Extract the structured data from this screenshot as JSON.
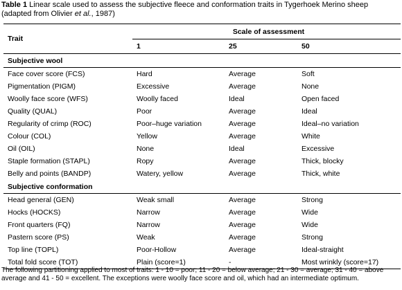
{
  "caption": {
    "label": "Table 1",
    "text": "Linear scale used to assess the subjective fleece and conformation traits in Tygerhoek Merino sheep (adapted from Olivier",
    "italic": "et al.",
    "end": ", 1987)"
  },
  "table": {
    "trait_header": "Trait",
    "scale_header": "Scale of assessment",
    "scale_columns": [
      "1",
      "25",
      "50"
    ],
    "sections": [
      {
        "title": "Subjective wool",
        "rows": [
          [
            "Face cover score (FCS)",
            "Hard",
            "Average",
            "Soft"
          ],
          [
            "Pigmentation (PIGM)",
            "Excessive",
            "Average",
            "None"
          ],
          [
            "Woolly face score (WFS)",
            "Woolly faced",
            "Ideal",
            "Open faced"
          ],
          [
            "Quality (QUAL)",
            "Poor",
            "Average",
            "Ideal"
          ],
          [
            "Regularity of crimp (ROC)",
            "Poor–huge variation",
            "Average",
            "Ideal–no variation"
          ],
          [
            "Colour (COL)",
            "Yellow",
            "Average",
            "White"
          ],
          [
            "Oil (OIL)",
            "None",
            "Ideal",
            "Excessive"
          ],
          [
            "Staple formation (STAPL)",
            "Ropy",
            "Average",
            "Thick, blocky"
          ],
          [
            "Belly and points (BANDP)",
            "Watery, yellow",
            "Average",
            "Thick, white"
          ]
        ]
      },
      {
        "title": "Subjective conformation",
        "rows": [
          [
            "Head general (GEN)",
            "Weak small",
            "Average",
            "Strong"
          ],
          [
            "Hocks (HOCKS)",
            "Narrow",
            "Average",
            "Wide"
          ],
          [
            "Front quarters (FQ)",
            "Narrow",
            "Average",
            "Wide"
          ],
          [
            "Pastern score (PS)",
            "Weak",
            "Average",
            "Strong"
          ],
          [
            "Top line (TOPL)",
            "Poor-Hollow",
            "Average",
            "Ideal-straight"
          ],
          [
            "Total fold score (TOT)",
            "Plain (score=1)",
            "-",
            "Most wrinkly (score=17)"
          ]
        ]
      }
    ]
  },
  "footnote": "The following partitioning applied to most of traits: 1 - 10 = poor; 11 - 20 = below average; 21 - 30 = average; 31 - 40 = above average and 41 - 50 = excellent. The exceptions were woolly face score and oil, which had an intermediate optimum."
}
